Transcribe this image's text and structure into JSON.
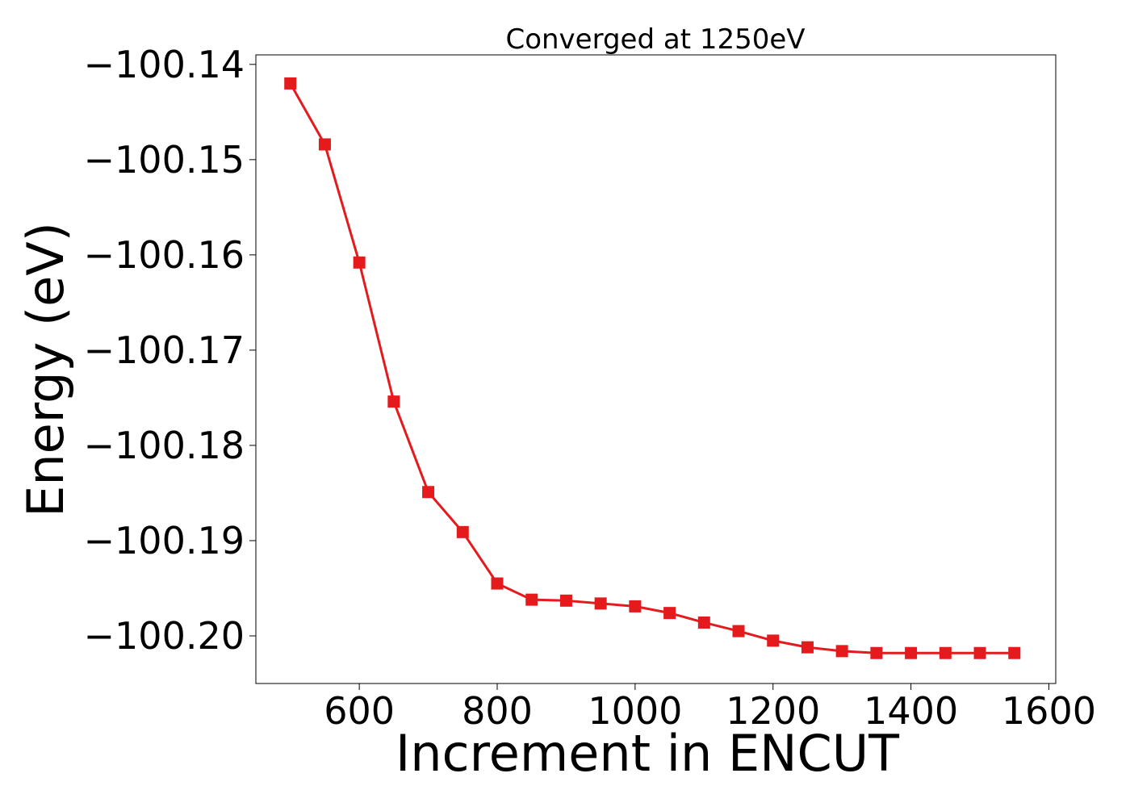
{
  "chart_data": {
    "type": "line",
    "title": "Converged at 1250eV",
    "xlabel": "Increment in ENCUT",
    "ylabel": "Energy (eV)",
    "xlim": [
      450,
      1610
    ],
    "ylim": [
      -100.205,
      -100.139
    ],
    "xticks": [
      600,
      800,
      1000,
      1200,
      1400,
      1600
    ],
    "xtick_labels": [
      "600",
      "800",
      "1000",
      "1200",
      "1400",
      "1600"
    ],
    "yticks": [
      -100.14,
      -100.15,
      -100.16,
      -100.17,
      -100.18,
      -100.19,
      -100.2
    ],
    "ytick_labels": [
      "−100.14",
      "−100.15",
      "−100.16",
      "−100.17",
      "−100.18",
      "−100.19",
      "−100.20"
    ],
    "grid": false,
    "series": [
      {
        "color": "#e41a1c",
        "marker": "square",
        "x": [
          500,
          550,
          600,
          650,
          700,
          750,
          800,
          850,
          900,
          950,
          1000,
          1050,
          1100,
          1150,
          1200,
          1250,
          1300,
          1350,
          1400,
          1450,
          1500,
          1550
        ],
        "y": [
          -100.142,
          -100.1484,
          -100.1608,
          -100.1754,
          -100.1849,
          -100.1891,
          -100.1945,
          -100.1962,
          -100.1963,
          -100.1966,
          -100.1969,
          -100.1976,
          -100.1986,
          -100.1995,
          -100.2005,
          -100.2012,
          -100.2016,
          -100.2018,
          -100.2018,
          -100.2018,
          -100.2018,
          -100.2018
        ]
      }
    ]
  }
}
